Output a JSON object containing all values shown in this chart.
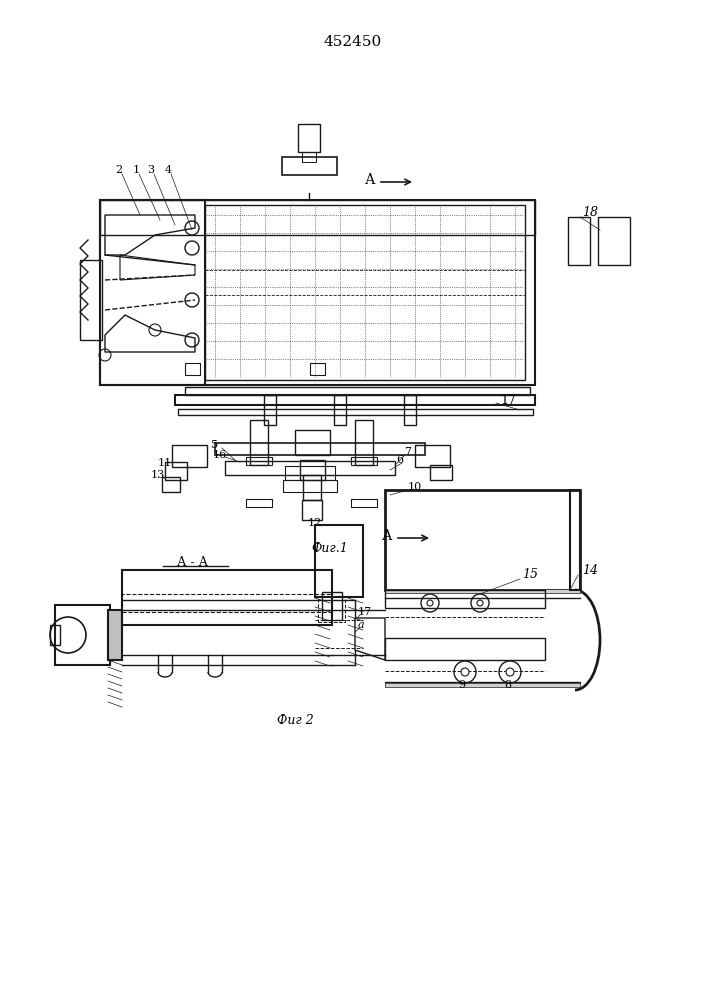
{
  "title": "452450",
  "fig1_label": "Фиг.1",
  "fig2_label": "Фиг 2",
  "section_label": "А - А",
  "bg_color": "#ffffff",
  "line_color": "#1a1a1a",
  "fig_size": [
    7.07,
    10.0
  ],
  "dpi": 100
}
